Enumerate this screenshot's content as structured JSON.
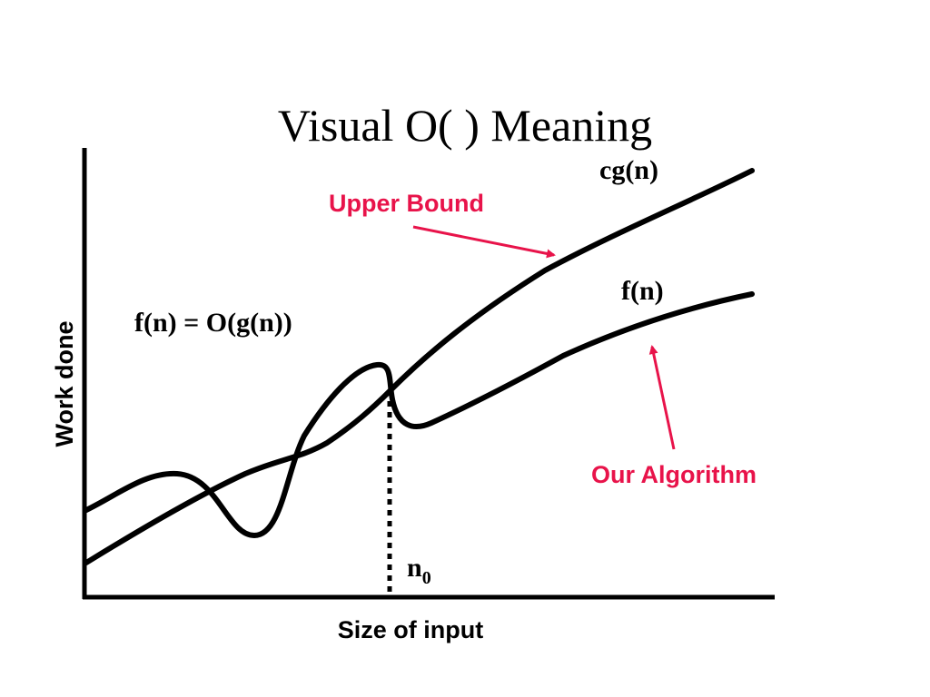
{
  "title": "Visual O( ) Meaning",
  "axes": {
    "xlabel": "Size of input",
    "ylabel": "Work done"
  },
  "curves": {
    "upper": {
      "label": "cg(n)"
    },
    "algorithm": {
      "label": "f(n)"
    }
  },
  "equation": "f(n) = O(g(n))",
  "threshold": {
    "base": "n",
    "subscript": "0"
  },
  "callouts": {
    "upper_bound": "Upper Bound",
    "our_algorithm": "Our Algorithm"
  },
  "colors": {
    "ink": "#000000",
    "accent": "#e8134a"
  }
}
